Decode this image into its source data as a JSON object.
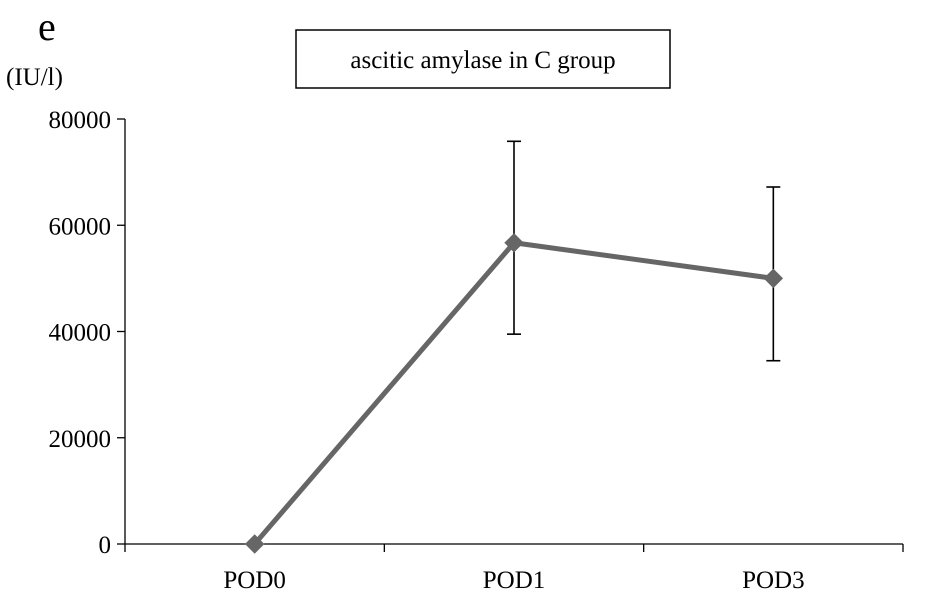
{
  "panel_letter": "e",
  "colors": {
    "series": "#666666",
    "axis": "#000000",
    "error_bar": "#000000",
    "background": "#ffffff"
  },
  "chart_data": {
    "type": "line",
    "title": "ascitic amylase in C group",
    "xlabel": "",
    "ylabel": "(IU/l)",
    "categories": [
      "POD0",
      "POD1",
      "POD3"
    ],
    "ylim": [
      0,
      80000
    ],
    "yticks": [
      0,
      20000,
      40000,
      60000,
      80000
    ],
    "yticks_labels": [
      "0",
      "20000",
      "40000",
      "60000",
      "80000"
    ],
    "grid": false,
    "legend": "none",
    "marker": "diamond",
    "series": [
      {
        "values": [
          0,
          56700,
          50000
        ],
        "error_low": [
          0,
          39500,
          34500
        ],
        "error_high": [
          0,
          75800,
          67200
        ]
      }
    ]
  }
}
